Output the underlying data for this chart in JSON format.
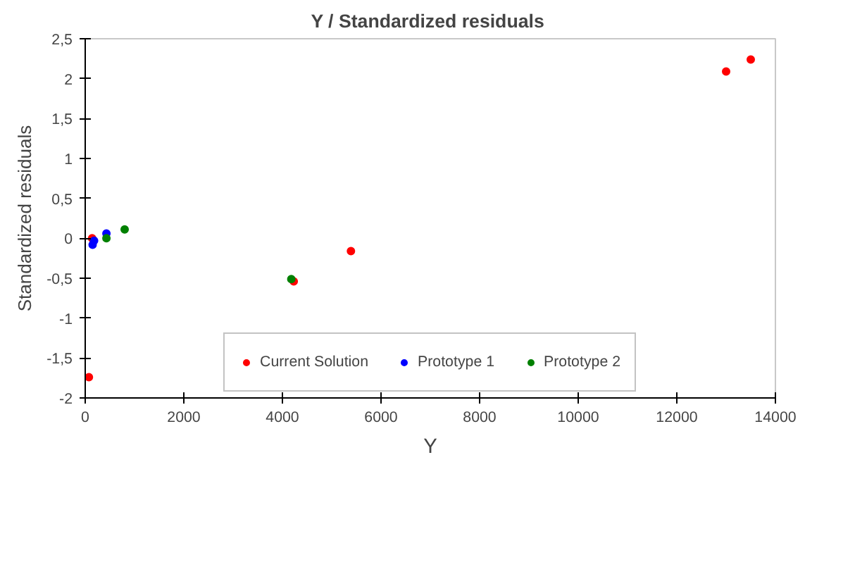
{
  "chart_data": {
    "type": "scatter",
    "title": "Y /  Standardized residuals",
    "xlabel": "Y",
    "ylabel": "Standardized residuals",
    "xlim": [
      0,
      14000
    ],
    "xticks": [
      0,
      2000,
      4000,
      6000,
      8000,
      10000,
      12000,
      14000
    ],
    "ylim": [
      -2,
      2.5
    ],
    "yticks": [
      {
        "value": -2,
        "label": "-2"
      },
      {
        "value": -1.5,
        "label": "-1,5"
      },
      {
        "value": -1,
        "label": "-1"
      },
      {
        "value": -0.5,
        "label": "-0,5"
      },
      {
        "value": 0,
        "label": "0"
      },
      {
        "value": 0.5,
        "label": "0,5"
      },
      {
        "value": 1,
        "label": "1"
      },
      {
        "value": 1.5,
        "label": "1,5"
      },
      {
        "value": 2,
        "label": "2"
      },
      {
        "value": 2.5,
        "label": "2,5"
      }
    ],
    "grid": false,
    "legend": "bottom",
    "marker": "circle",
    "series": [
      {
        "name": "Current Solution",
        "color": "#ff0000",
        "x": [
          140,
          75,
          5390,
          4230,
          13000,
          13500
        ],
        "values": [
          0,
          -1.74,
          -0.16,
          -0.54,
          2.09,
          2.24
        ]
      },
      {
        "name": "Prototype 1",
        "color": "#0000ff",
        "x": [
          150,
          180,
          430
        ],
        "values": [
          -0.08,
          -0.03,
          0.06
        ]
      },
      {
        "name": "Prototype 2",
        "color": "#008000",
        "x": [
          430,
          800,
          4180
        ],
        "values": [
          0,
          0.11,
          -0.51
        ]
      }
    ]
  }
}
